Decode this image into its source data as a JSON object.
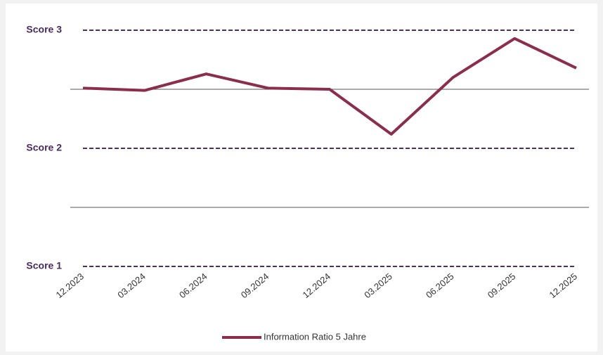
{
  "chart_data": {
    "type": "line",
    "categories": [
      "12.2023",
      "03.2024",
      "06.2024",
      "09.2024",
      "12.2024",
      "03.2025",
      "06.2025",
      "09.2025",
      "12.2025"
    ],
    "series": [
      {
        "name": "Information Ratio 5 Jahre",
        "color": "#8c2d4e",
        "values": [
          2.51,
          2.49,
          2.63,
          2.51,
          2.5,
          2.12,
          2.6,
          2.93,
          2.68
        ]
      }
    ],
    "ylim": [
      1,
      3
    ],
    "yticks": [
      {
        "value": 1,
        "label": "Score 1"
      },
      {
        "value": 2,
        "label": "Score 2"
      },
      {
        "value": 3,
        "label": "Score 3"
      }
    ],
    "minor_yticks": [
      1.5,
      2.5
    ],
    "legend": "bottom"
  }
}
